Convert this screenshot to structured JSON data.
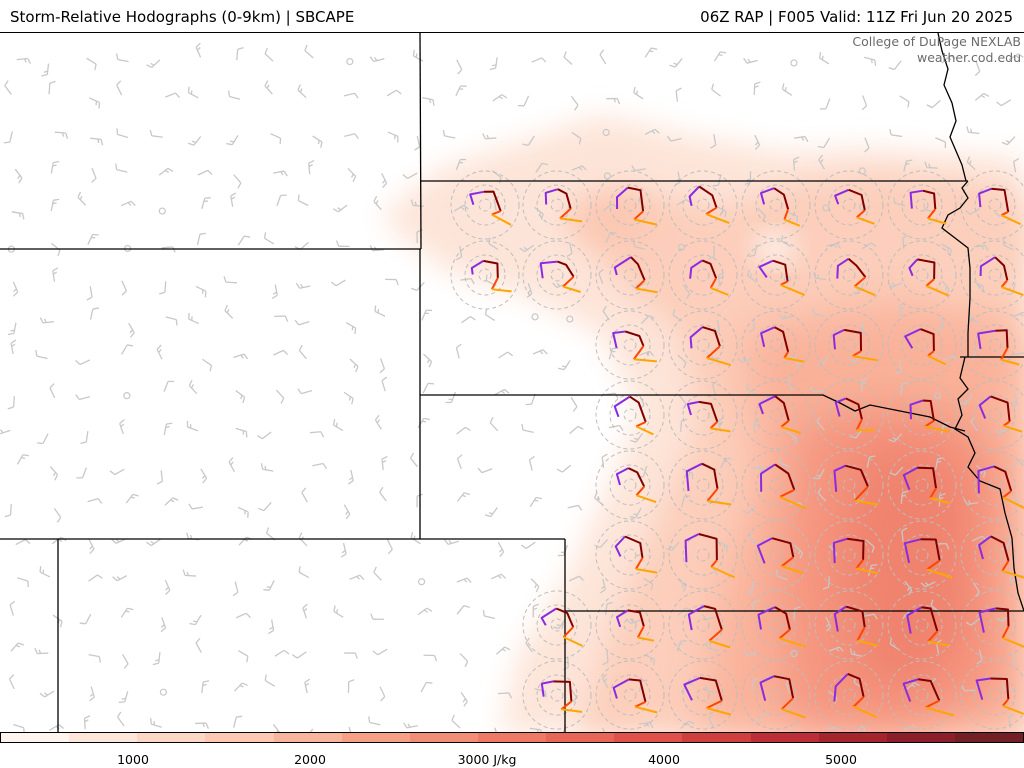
{
  "header": {
    "title": "Storm-Relative Hodographs (0-9km) | SBCAPE",
    "run_info": "06Z RAP | F005 Valid: 11Z Fri Jun 20 2025"
  },
  "credit": {
    "line1": "College of DuPage NEXLAB",
    "line2": "weather.cod.edu"
  },
  "colorbar": {
    "colors": [
      "#fff4ee",
      "#fee6da",
      "#fdd7c5",
      "#fcc8b1",
      "#f9b59b",
      "#f6a186",
      "#f28e76",
      "#ee7a66",
      "#e86656",
      "#df5149",
      "#cf3f3e",
      "#bc2f36",
      "#a5252f",
      "#8b1e2a",
      "#722026"
    ],
    "ticks": [
      "1000",
      "2000",
      "3000 J/kg",
      "4000",
      "5000"
    ]
  },
  "map": {
    "shading_color": "#f4a383",
    "background_barb_color": "#c8c8c8",
    "range_ring_color": "#bdbdbd",
    "boundary_color": "#000000",
    "hodograph_colors": {
      "0-1km": "#8a2be2",
      "1-3km": "#800000",
      "3-6km": "#ff4500",
      "6-9km": "#ffa500"
    }
  }
}
